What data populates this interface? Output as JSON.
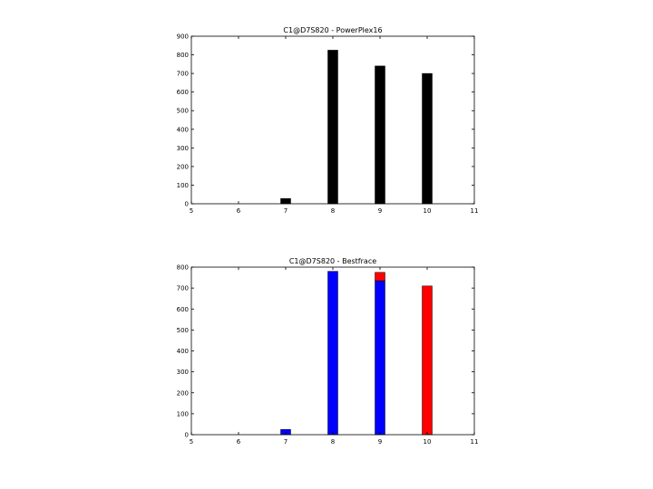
{
  "chart_data": [
    {
      "type": "bar",
      "title": "C1@D7S820 - PowerPlex16",
      "xlabel": "",
      "ylabel": "",
      "x": [
        7,
        8,
        9,
        10
      ],
      "values": [
        28,
        825,
        740,
        700
      ],
      "bar_color": "#000000",
      "xlim": [
        5,
        11
      ],
      "ylim": [
        0,
        900
      ],
      "xticks": [
        5,
        6,
        7,
        8,
        9,
        10,
        11
      ],
      "yticks": [
        0,
        100,
        200,
        300,
        400,
        500,
        600,
        700,
        800,
        900
      ],
      "grid": false
    },
    {
      "type": "bar",
      "title": "C1@D7S820 - Bestfrace",
      "xlabel": "",
      "ylabel": "",
      "x": [
        7,
        8,
        9,
        10
      ],
      "stacked": true,
      "series": [
        {
          "color": "#0000ff",
          "values": [
            25,
            780,
            735,
            0
          ]
        },
        {
          "color": "#ff0000",
          "values": [
            0,
            0,
            40,
            710
          ]
        }
      ],
      "xlim": [
        5,
        11
      ],
      "ylim": [
        0,
        800
      ],
      "xticks": [
        5,
        6,
        7,
        8,
        9,
        10,
        11
      ],
      "yticks": [
        0,
        100,
        200,
        300,
        400,
        500,
        600,
        700,
        800
      ],
      "grid": false
    }
  ]
}
